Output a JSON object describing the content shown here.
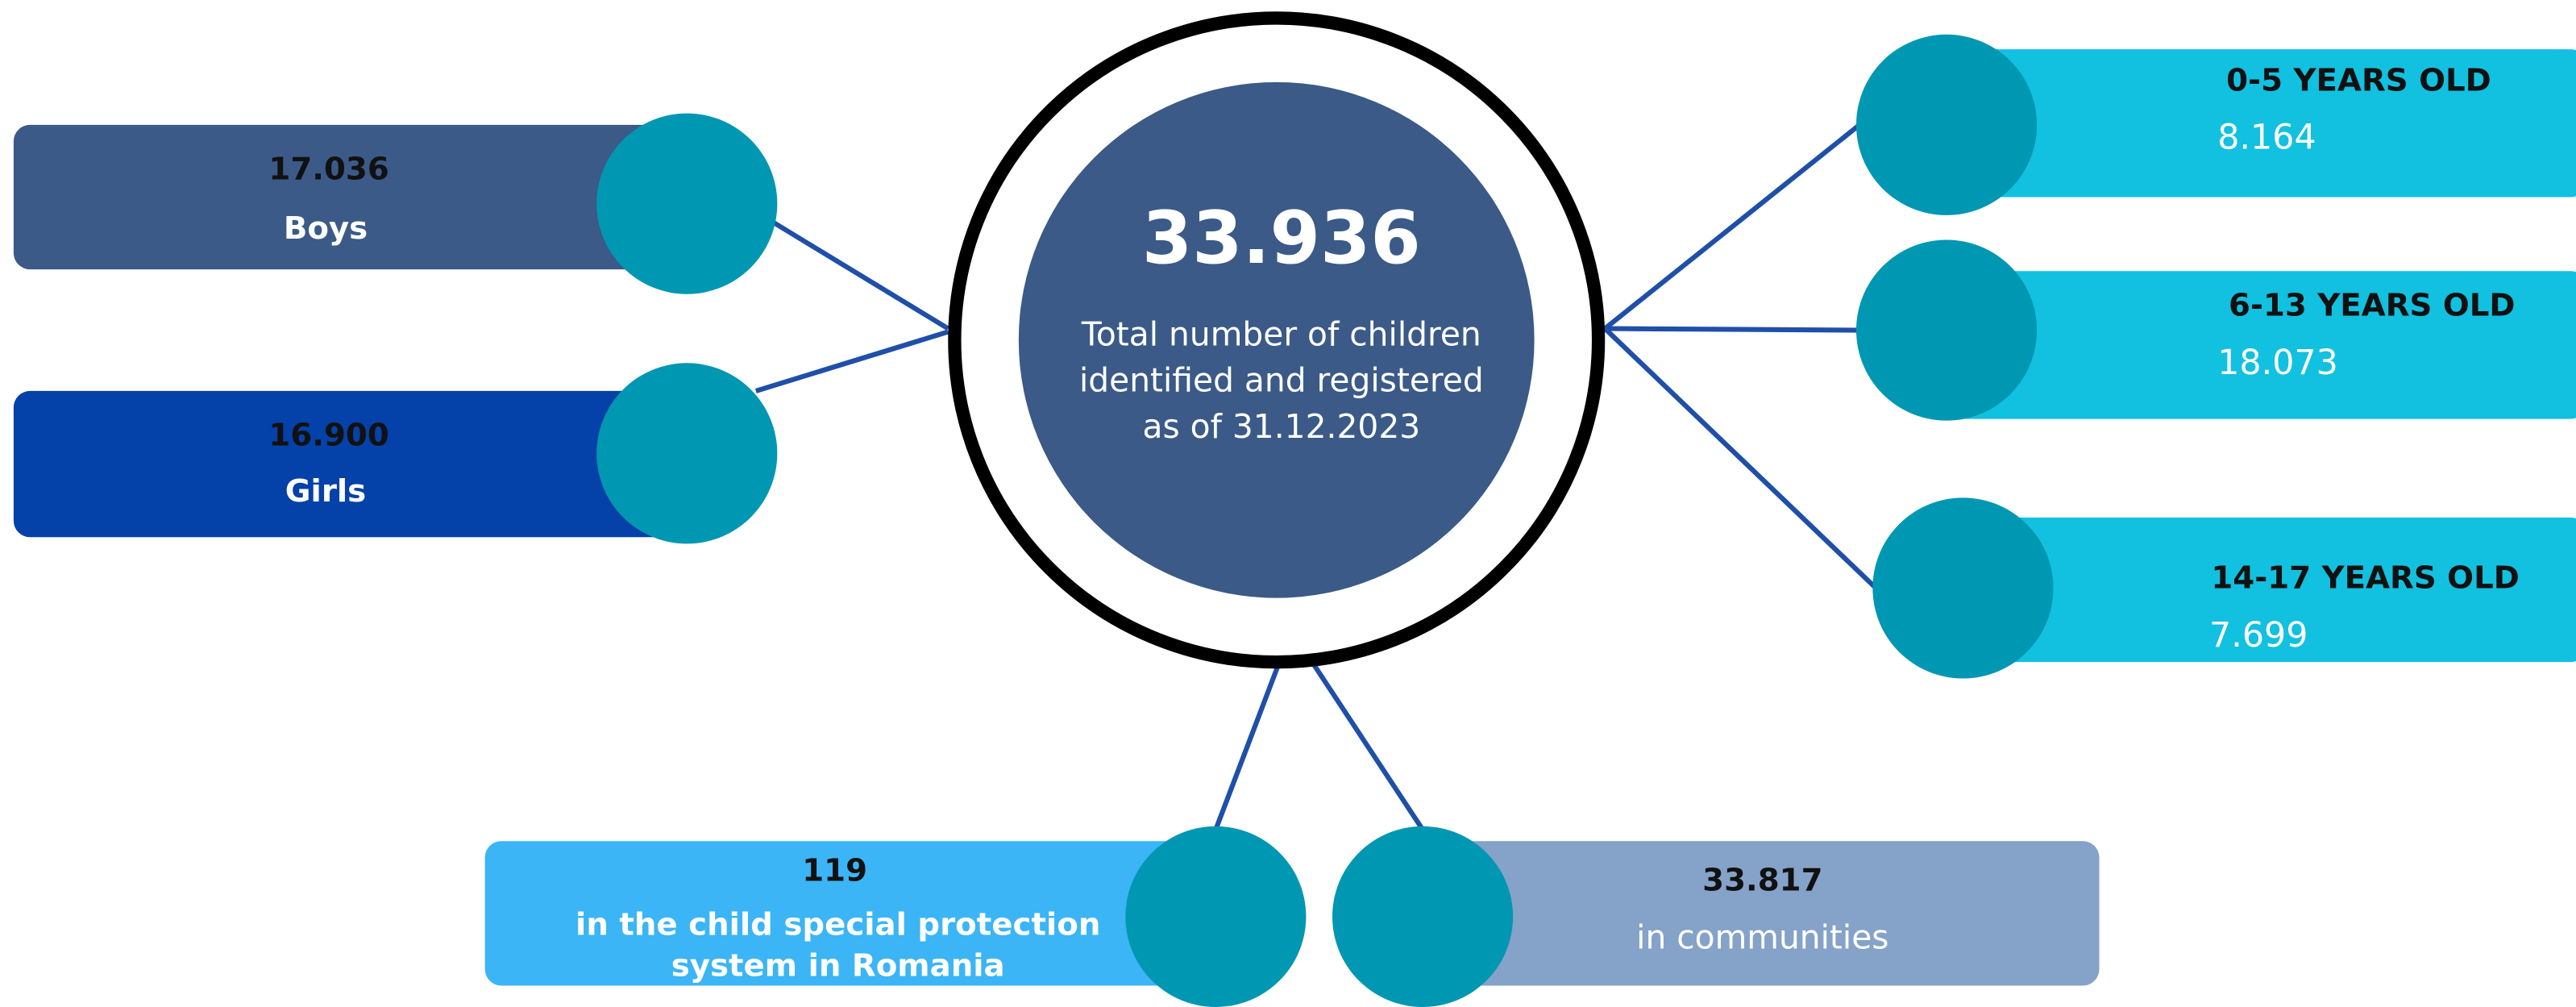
{
  "center": {
    "value": "33.936",
    "lines": [
      "Total number of children",
      "identified and registered",
      "as of 31.12.2023"
    ]
  },
  "gender": [
    {
      "value": "17.036",
      "label": "Boys"
    },
    {
      "value": "16.900",
      "label": "Girls"
    }
  ],
  "age_groups": [
    {
      "label": "0-5 YEARS OLD",
      "value": "8.164"
    },
    {
      "label": "6-13 YEARS OLD",
      "value": "18.073"
    },
    {
      "label": "14-17 YEARS OLD",
      "value": "7.699"
    }
  ],
  "placement": [
    {
      "value": "119",
      "lines": [
        "in the child special protection",
        "system in Romania"
      ]
    },
    {
      "value": "33.817",
      "lines": [
        "in communities"
      ]
    }
  ]
}
